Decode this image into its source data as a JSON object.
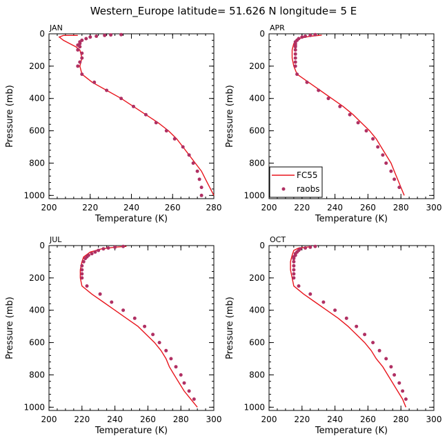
{
  "title": "Western_Europe  latitude= 51.626 N longitude= 5 E",
  "colors": {
    "model": "#e8141c",
    "obs": "#b03063",
    "axis": "#000000"
  },
  "legend": {
    "model_label": "FC55",
    "obs_label": "raobs"
  },
  "chart_data": [
    {
      "type": "line",
      "panel": "JAN",
      "xlabel": "Temperature (K)",
      "ylabel": "Pressure (mb)",
      "xlim": [
        200,
        280
      ],
      "ylim": [
        1020,
        0
      ],
      "xticks": [
        200,
        220,
        240,
        260,
        280
      ],
      "yticks": [
        0,
        200,
        400,
        600,
        800,
        1000
      ],
      "legend": false,
      "series": [
        {
          "name": "FC55",
          "points": [
            [
              214,
              10
            ],
            [
              207,
              10
            ],
            [
              205,
              20
            ],
            [
              207,
              40
            ],
            [
              210,
              60
            ],
            [
              213,
              80
            ],
            [
              215,
              100
            ],
            [
              216,
              150
            ],
            [
              215,
              200
            ],
            [
              216,
              250
            ],
            [
              221,
              300
            ],
            [
              228,
              350
            ],
            [
              235,
              400
            ],
            [
              241,
              450
            ],
            [
              247,
              500
            ],
            [
              253,
              550
            ],
            [
              258,
              600
            ],
            [
              262,
              650
            ],
            [
              265,
              700
            ],
            [
              268,
              750
            ],
            [
              271,
              800
            ],
            [
              274,
              850
            ],
            [
              276,
              900
            ],
            [
              278,
              950
            ],
            [
              280,
              1000
            ]
          ]
        },
        {
          "name": "raobs",
          "points": [
            [
              235,
              5
            ],
            [
              230,
              7
            ],
            [
              227,
              10
            ],
            [
              223,
              15
            ],
            [
              220,
              20
            ],
            [
              218,
              30
            ],
            [
              216,
              40
            ],
            [
              215,
              50
            ],
            [
              215,
              60
            ],
            [
              214,
              70
            ],
            [
              215,
              80
            ],
            [
              214,
              100
            ],
            [
              216,
              120
            ],
            [
              216,
              150
            ],
            [
              215,
              175
            ],
            [
              214,
              200
            ],
            [
              216,
              250
            ],
            [
              222,
              300
            ],
            [
              228,
              350
            ],
            [
              235,
              400
            ],
            [
              241,
              450
            ],
            [
              247,
              500
            ],
            [
              252,
              550
            ],
            [
              257,
              600
            ],
            [
              261,
              650
            ],
            [
              265,
              700
            ],
            [
              268,
              750
            ],
            [
              270,
              800
            ],
            [
              272,
              850
            ],
            [
              273,
              900
            ],
            [
              274,
              950
            ],
            [
              274,
              1000
            ]
          ]
        }
      ]
    },
    {
      "type": "line",
      "panel": "APR",
      "xlabel": "Temperature (K)",
      "ylabel": "Pressure (mb)",
      "xlim": [
        200,
        300
      ],
      "ylim": [
        1020,
        0
      ],
      "xticks": [
        200,
        220,
        240,
        260,
        280,
        300
      ],
      "yticks": [
        0,
        200,
        400,
        600,
        800,
        1000
      ],
      "legend": true,
      "series": [
        {
          "name": "FC55",
          "points": [
            [
              232,
              8
            ],
            [
              225,
              15
            ],
            [
              218,
              30
            ],
            [
              215,
              60
            ],
            [
              214,
              100
            ],
            [
              214,
              150
            ],
            [
              215,
              200
            ],
            [
              217,
              250
            ],
            [
              224,
              300
            ],
            [
              231,
              350
            ],
            [
              238,
              400
            ],
            [
              245,
              450
            ],
            [
              251,
              500
            ],
            [
              256,
              550
            ],
            [
              261,
              600
            ],
            [
              265,
              650
            ],
            [
              268,
              700
            ],
            [
              271,
              750
            ],
            [
              274,
              800
            ],
            [
              276,
              850
            ],
            [
              278,
              900
            ],
            [
              280,
              950
            ],
            [
              282,
              1000
            ]
          ]
        },
        {
          "name": "raobs",
          "points": [
            [
              228,
              5
            ],
            [
              225,
              10
            ],
            [
              222,
              15
            ],
            [
              220,
              20
            ],
            [
              218,
              30
            ],
            [
              217,
              40
            ],
            [
              216,
              50
            ],
            [
              216,
              60
            ],
            [
              216,
              70
            ],
            [
              216,
              80
            ],
            [
              216,
              100
            ],
            [
              216,
              125
            ],
            [
              216,
              150
            ],
            [
              216,
              175
            ],
            [
              216,
              200
            ],
            [
              217,
              250
            ],
            [
              223,
              300
            ],
            [
              230,
              350
            ],
            [
              236,
              400
            ],
            [
              243,
              450
            ],
            [
              249,
              500
            ],
            [
              254,
              550
            ],
            [
              259,
              600
            ],
            [
              263,
              650
            ],
            [
              266,
              700
            ],
            [
              269,
              750
            ],
            [
              271,
              800
            ],
            [
              274,
              850
            ],
            [
              276,
              900
            ],
            [
              279,
              950
            ]
          ]
        }
      ]
    },
    {
      "type": "line",
      "panel": "JUL",
      "xlabel": "Temperature (K)",
      "ylabel": "Pressure (mb)",
      "xlim": [
        200,
        300
      ],
      "ylim": [
        1020,
        0
      ],
      "xticks": [
        200,
        220,
        240,
        260,
        280,
        300
      ],
      "yticks": [
        0,
        200,
        400,
        600,
        800,
        1000
      ],
      "legend": false,
      "series": [
        {
          "name": "FC55",
          "points": [
            [
              247,
              5
            ],
            [
              240,
              10
            ],
            [
              232,
              20
            ],
            [
              225,
              40
            ],
            [
              221,
              70
            ],
            [
              220,
              100
            ],
            [
              219,
              150
            ],
            [
              219,
              200
            ],
            [
              220,
              250
            ],
            [
              226,
              300
            ],
            [
              233,
              350
            ],
            [
              240,
              400
            ],
            [
              247,
              450
            ],
            [
              254,
              500
            ],
            [
              259,
              550
            ],
            [
              264,
              600
            ],
            [
              268,
              650
            ],
            [
              271,
              700
            ],
            [
              273,
              750
            ],
            [
              276,
              800
            ],
            [
              279,
              850
            ],
            [
              282,
              900
            ],
            [
              286,
              950
            ],
            [
              290,
              1000
            ]
          ]
        },
        {
          "name": "raobs",
          "points": [
            [
              245,
              5
            ],
            [
              240,
              10
            ],
            [
              236,
              15
            ],
            [
              233,
              20
            ],
            [
              230,
              30
            ],
            [
              228,
              40
            ],
            [
              226,
              50
            ],
            [
              224,
              60
            ],
            [
              223,
              70
            ],
            [
              222,
              80
            ],
            [
              221,
              100
            ],
            [
              220,
              125
            ],
            [
              220,
              150
            ],
            [
              220,
              175
            ],
            [
              220,
              200
            ],
            [
              223,
              250
            ],
            [
              231,
              300
            ],
            [
              238,
              350
            ],
            [
              245,
              400
            ],
            [
              252,
              450
            ],
            [
              258,
              500
            ],
            [
              263,
              550
            ],
            [
              267,
              600
            ],
            [
              271,
              650
            ],
            [
              274,
              700
            ],
            [
              277,
              750
            ],
            [
              280,
              800
            ],
            [
              282,
              850
            ],
            [
              285,
              900
            ],
            [
              288,
              950
            ]
          ]
        }
      ]
    },
    {
      "type": "line",
      "panel": "OCT",
      "xlabel": "Temperature (K)",
      "ylabel": "Pressure (mb)",
      "xlim": [
        200,
        300
      ],
      "ylim": [
        1020,
        0
      ],
      "xticks": [
        200,
        220,
        240,
        260,
        280,
        300
      ],
      "yticks": [
        0,
        200,
        400,
        600,
        800,
        1000
      ],
      "legend": false,
      "series": [
        {
          "name": "FC55",
          "points": [
            [
              224,
              8
            ],
            [
              218,
              15
            ],
            [
              215,
              30
            ],
            [
              214,
              60
            ],
            [
              213,
              100
            ],
            [
              213,
              150
            ],
            [
              214,
              200
            ],
            [
              215,
              250
            ],
            [
              221,
              300
            ],
            [
              228,
              350
            ],
            [
              235,
              400
            ],
            [
              242,
              450
            ],
            [
              248,
              500
            ],
            [
              253,
              550
            ],
            [
              258,
              600
            ],
            [
              262,
              650
            ],
            [
              265,
              700
            ],
            [
              269,
              750
            ],
            [
              272,
              800
            ],
            [
              275,
              850
            ],
            [
              278,
              900
            ],
            [
              281,
              950
            ],
            [
              283,
              1000
            ]
          ]
        },
        {
          "name": "raobs",
          "points": [
            [
              228,
              5
            ],
            [
              225,
              10
            ],
            [
              222,
              15
            ],
            [
              219,
              20
            ],
            [
              218,
              30
            ],
            [
              217,
              40
            ],
            [
              216,
              50
            ],
            [
              216,
              60
            ],
            [
              215,
              70
            ],
            [
              215,
              80
            ],
            [
              215,
              100
            ],
            [
              215,
              125
            ],
            [
              215,
              150
            ],
            [
              215,
              175
            ],
            [
              215,
              200
            ],
            [
              218,
              250
            ],
            [
              225,
              300
            ],
            [
              233,
              350
            ],
            [
              240,
              400
            ],
            [
              247,
              450
            ],
            [
              253,
              500
            ],
            [
              258,
              550
            ],
            [
              263,
              600
            ],
            [
              267,
              650
            ],
            [
              271,
              700
            ],
            [
              274,
              750
            ],
            [
              276,
              800
            ],
            [
              279,
              850
            ],
            [
              281,
              900
            ],
            [
              283,
              950
            ]
          ]
        }
      ]
    }
  ]
}
